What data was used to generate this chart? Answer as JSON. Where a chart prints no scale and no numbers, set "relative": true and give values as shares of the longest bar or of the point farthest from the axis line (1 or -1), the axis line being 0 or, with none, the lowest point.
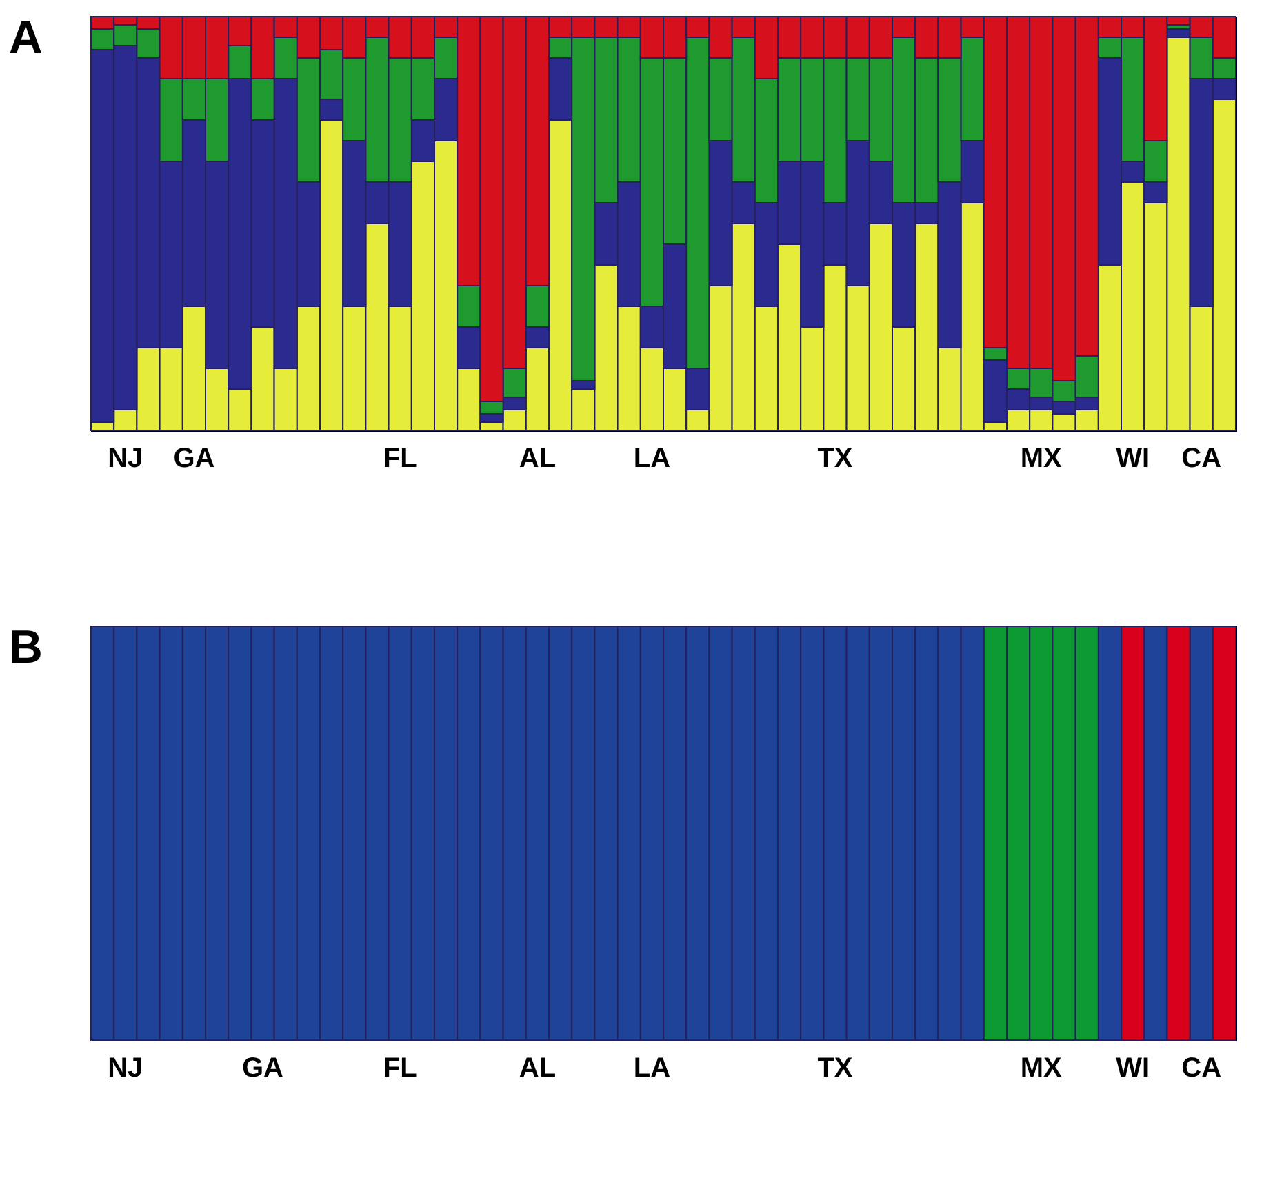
{
  "chart_data": [
    {
      "type": "bar",
      "stacked": true,
      "relative": true,
      "title": "A",
      "categories": [
        null,
        "NJ",
        null,
        null,
        "GA",
        null,
        null,
        null,
        null,
        null,
        null,
        null,
        null,
        "FL",
        null,
        null,
        null,
        null,
        null,
        "AL",
        null,
        null,
        null,
        null,
        "LA",
        null,
        null,
        null,
        null,
        null,
        null,
        null,
        "TX",
        null,
        null,
        null,
        null,
        null,
        null,
        null,
        null,
        "MX",
        null,
        null,
        null,
        "WI",
        null,
        null,
        "CA",
        null
      ],
      "series": [
        {
          "color": "#e5ec3a",
          "values": [
            0.02,
            0.05,
            0.2,
            0.2,
            0.3,
            0.15,
            0.1,
            0.25,
            0.15,
            0.3,
            0.75,
            0.3,
            0.5,
            0.3,
            0.65,
            0.7,
            0.15,
            0.02,
            0.05,
            0.2,
            0.75,
            0.1,
            0.4,
            0.3,
            0.2,
            0.15,
            0.05,
            0.35,
            0.5,
            0.3,
            0.45,
            0.25,
            0.4,
            0.35,
            0.5,
            0.25,
            0.5,
            0.2,
            0.55,
            0.02,
            0.05,
            0.05,
            0.04,
            0.05,
            0.4,
            0.6,
            0.55,
            0.95,
            0.3,
            0.8
          ]
        },
        {
          "color": "#2b2a8f",
          "values": [
            0.9,
            0.88,
            0.7,
            0.45,
            0.45,
            0.5,
            0.75,
            0.5,
            0.7,
            0.3,
            0.05,
            0.4,
            0.1,
            0.3,
            0.1,
            0.15,
            0.1,
            0.02,
            0.03,
            0.05,
            0.15,
            0.02,
            0.15,
            0.3,
            0.1,
            0.3,
            0.1,
            0.35,
            0.1,
            0.25,
            0.2,
            0.4,
            0.15,
            0.35,
            0.15,
            0.3,
            0.05,
            0.4,
            0.15,
            0.15,
            0.05,
            0.03,
            0.03,
            0.03,
            0.5,
            0.05,
            0.05,
            0.02,
            0.55,
            0.05
          ]
        },
        {
          "color": "#1e9a2e",
          "values": [
            0.05,
            0.05,
            0.07,
            0.2,
            0.1,
            0.2,
            0.08,
            0.1,
            0.1,
            0.3,
            0.12,
            0.2,
            0.35,
            0.3,
            0.15,
            0.1,
            0.1,
            0.03,
            0.07,
            0.1,
            0.05,
            0.83,
            0.4,
            0.35,
            0.6,
            0.45,
            0.8,
            0.2,
            0.35,
            0.3,
            0.25,
            0.25,
            0.35,
            0.2,
            0.25,
            0.4,
            0.35,
            0.3,
            0.25,
            0.03,
            0.05,
            0.07,
            0.05,
            0.1,
            0.05,
            0.3,
            0.1,
            0.01,
            0.1,
            0.05
          ]
        },
        {
          "color": "#d7101e",
          "values": [
            0.03,
            0.02,
            0.03,
            0.15,
            0.15,
            0.15,
            0.07,
            0.15,
            0.05,
            0.1,
            0.08,
            0.1,
            0.05,
            0.1,
            0.1,
            0.05,
            0.65,
            0.93,
            0.85,
            0.65,
            0.05,
            0.05,
            0.05,
            0.05,
            0.1,
            0.1,
            0.05,
            0.1,
            0.05,
            0.15,
            0.1,
            0.1,
            0.1,
            0.1,
            0.1,
            0.05,
            0.1,
            0.1,
            0.05,
            0.8,
            0.85,
            0.85,
            0.88,
            0.82,
            0.05,
            0.05,
            0.3,
            0.02,
            0.05,
            0.1
          ]
        }
      ]
    },
    {
      "type": "bar",
      "stacked": true,
      "relative": true,
      "title": "B",
      "categories": [
        null,
        "NJ",
        null,
        null,
        null,
        null,
        null,
        "GA",
        null,
        null,
        null,
        null,
        null,
        "FL",
        null,
        null,
        null,
        null,
        null,
        "AL",
        null,
        null,
        null,
        null,
        "LA",
        null,
        null,
        null,
        null,
        null,
        null,
        null,
        "TX",
        null,
        null,
        null,
        null,
        null,
        null,
        null,
        null,
        "MX",
        null,
        null,
        null,
        "WI",
        null,
        null,
        "CA",
        null
      ],
      "series": [
        {
          "color": "#1f4399",
          "values": [
            1,
            1,
            1,
            1,
            1,
            1,
            1,
            1,
            1,
            1,
            1,
            1,
            1,
            1,
            1,
            1,
            1,
            1,
            1,
            1,
            1,
            1,
            1,
            1,
            1,
            1,
            1,
            1,
            1,
            1,
            1,
            1,
            1,
            1,
            1,
            1,
            1,
            1,
            1,
            0,
            0,
            0,
            0,
            0,
            1,
            0,
            1,
            0,
            1,
            0
          ]
        },
        {
          "color": "#0e9a33",
          "values": [
            0,
            0,
            0,
            0,
            0,
            0,
            0,
            0,
            0,
            0,
            0,
            0,
            0,
            0,
            0,
            0,
            0,
            0,
            0,
            0,
            0,
            0,
            0,
            0,
            0,
            0,
            0,
            0,
            0,
            0,
            0,
            0,
            0,
            0,
            0,
            0,
            0,
            0,
            0,
            1,
            1,
            1,
            1,
            1,
            0,
            0,
            0,
            0,
            0,
            0
          ]
        },
        {
          "color": "#d9001b",
          "values": [
            0,
            0,
            0,
            0,
            0,
            0,
            0,
            0,
            0,
            0,
            0,
            0,
            0,
            0,
            0,
            0,
            0,
            0,
            0,
            0,
            0,
            0,
            0,
            0,
            0,
            0,
            0,
            0,
            0,
            0,
            0,
            0,
            0,
            0,
            0,
            0,
            0,
            0,
            0,
            0,
            0,
            0,
            0,
            0,
            0,
            1,
            0,
            1,
            0,
            1
          ]
        }
      ]
    }
  ]
}
